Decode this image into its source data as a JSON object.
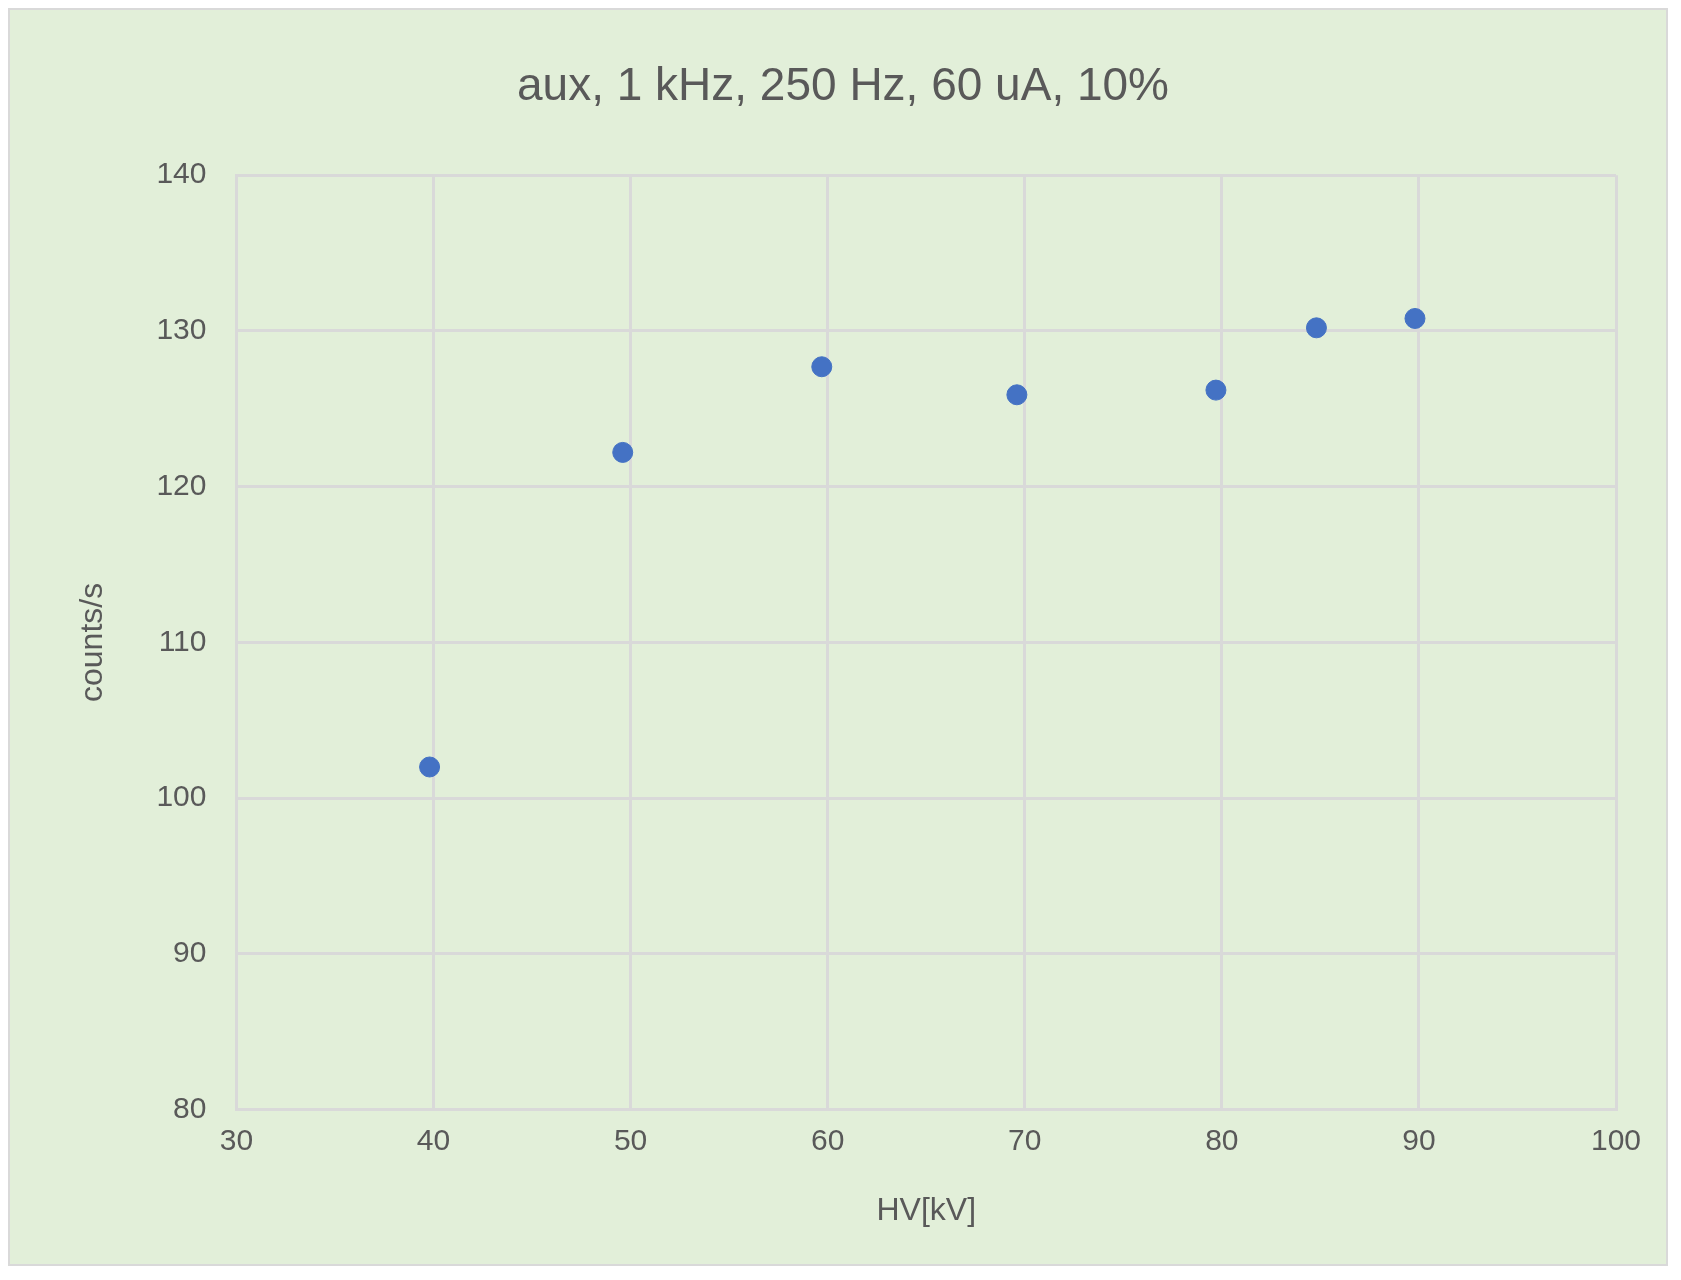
{
  "chart_data": {
    "type": "scatter",
    "title": "aux, 1 kHz, 250 Hz, 60 uA, 10%",
    "xlabel": "HV[kV]",
    "ylabel": "counts/s",
    "x": [
      39.8,
      49.6,
      59.7,
      69.6,
      79.7,
      84.8,
      89.8
    ],
    "series": [
      {
        "color": "#4472c4",
        "values": [
          102.0,
          122.2,
          127.7,
          125.9,
          126.2,
          130.2,
          130.8
        ]
      }
    ],
    "xlim": [
      30,
      100
    ],
    "xticks": [
      30,
      40,
      50,
      60,
      70,
      80,
      90,
      100
    ],
    "ylim": [
      80,
      140
    ],
    "yticks": [
      80,
      90,
      100,
      110,
      120,
      130,
      140
    ],
    "grid": true,
    "legend": false,
    "marker": "circle"
  }
}
